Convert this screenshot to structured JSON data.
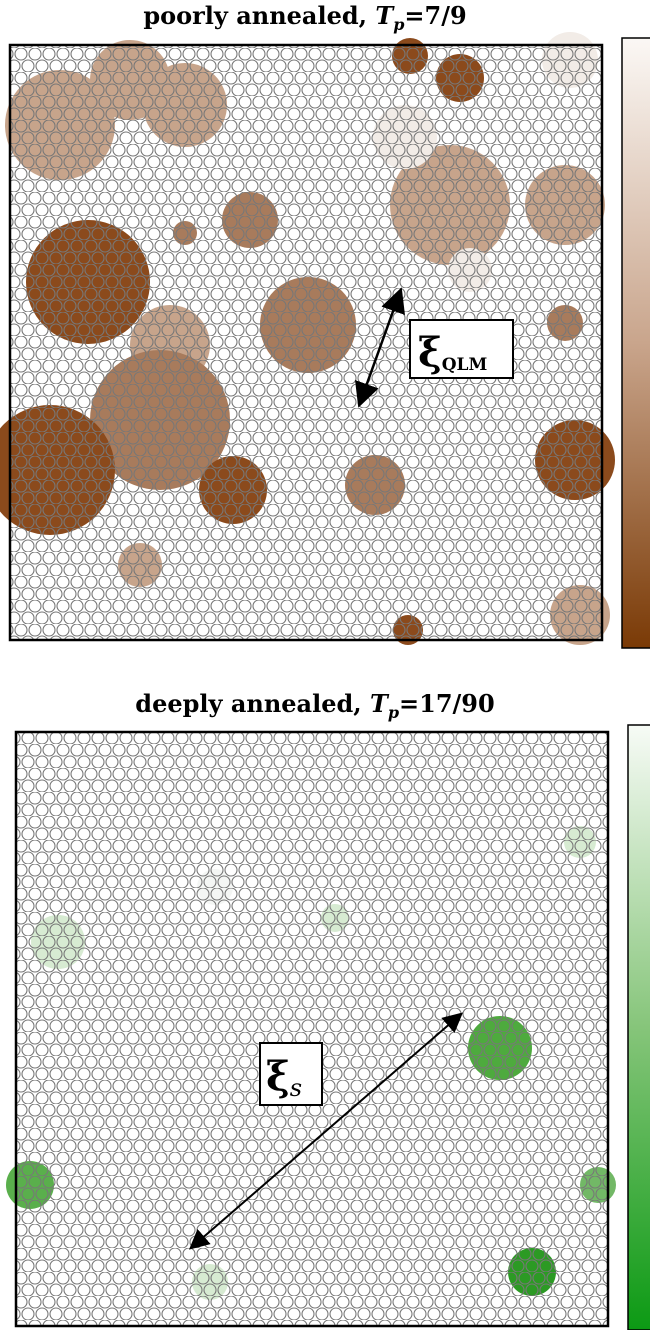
{
  "panels": [
    {
      "title": {
        "text": "poorly annealed,",
        "symbol": "T",
        "subscript": "p",
        "value": "=7/9"
      },
      "annotation": {
        "symbol": "ξ",
        "subscript": "QLM"
      }
    },
    {
      "title": {
        "text": "deeply annealed,",
        "symbol": "T",
        "subscript": "p",
        "value": "=17/90"
      },
      "annotation": {
        "symbol": "ξ",
        "subscript": "s"
      }
    }
  ]
}
